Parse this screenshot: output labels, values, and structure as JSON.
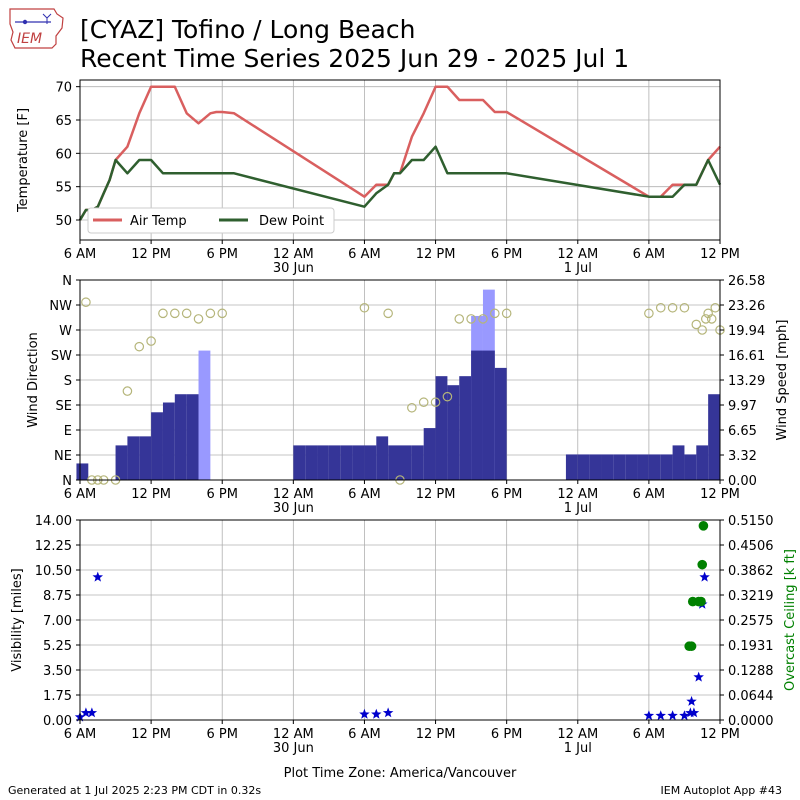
{
  "title": {
    "line1": "[CYAZ] Tofino / Long Beach",
    "line2": "Recent Time Series 2025 Jun 29 - 2025 Jul 1"
  },
  "logo": {
    "text": "IEM"
  },
  "footer": {
    "left": "Generated at 1 Jul 2025 2:23 PM CDT in 0.32s",
    "right": "IEM Autoplot App #43"
  },
  "colors": {
    "air_temp": "#d95f5f",
    "dew_point": "#2f5f2f",
    "wind_speed": "#353598",
    "wind_gust": "#9999ff",
    "wind_dir": "#b5b57a",
    "visibility": "#0000cc",
    "ceiling": "#008000",
    "grid": "#b0b0b0"
  },
  "chart_data": [
    {
      "type": "line",
      "name": "temperature-panel",
      "ylabel": "Temperature [F]",
      "ylim": [
        47,
        71
      ],
      "yticks": [
        50,
        55,
        60,
        65,
        70
      ],
      "xlim": [
        0,
        54
      ],
      "xticks": [
        0,
        6,
        12,
        18,
        24,
        30,
        36,
        42,
        48,
        54
      ],
      "xticklabels": [
        "6 AM",
        "12 PM",
        "6 PM",
        "12 AM",
        "6 AM",
        "12 PM",
        "6 PM",
        "12 AM",
        "6 AM",
        "12 PM"
      ],
      "date_labels": [
        {
          "x": 18,
          "label": "30 Jun"
        },
        {
          "x": 42,
          "label": "1 Jul"
        }
      ],
      "grid": true,
      "legend_placement": "lower-left",
      "series": [
        {
          "name": "Air Temp",
          "x": [
            0,
            0.5,
            1,
            1.5,
            2,
            2.5,
            3,
            4,
            5,
            6,
            7,
            8,
            9,
            10,
            11,
            11.5,
            12,
            13,
            24,
            25,
            26,
            26.5,
            27,
            28,
            29,
            30,
            31,
            32,
            33,
            34,
            35,
            36,
            48,
            49,
            50,
            51,
            52,
            53,
            54
          ],
          "y": [
            50,
            51.5,
            51.5,
            52,
            54,
            56,
            59,
            61,
            66,
            70,
            70,
            70,
            66,
            64.5,
            66,
            66.2,
            66.2,
            66,
            53.5,
            55.3,
            55.3,
            57,
            57,
            62.5,
            66,
            70,
            70,
            68,
            68,
            68,
            66.2,
            66.2,
            53.5,
            53.5,
            55.3,
            55.3,
            55.3,
            59,
            61
          ]
        },
        {
          "name": "Dew Point",
          "x": [
            0,
            0.5,
            1,
            1.5,
            2,
            2.5,
            3,
            4,
            5,
            6,
            7,
            8,
            9,
            10,
            11,
            11.5,
            12,
            13,
            24,
            25,
            26,
            26.5,
            27,
            28,
            29,
            30,
            31,
            32,
            33,
            34,
            35,
            36,
            48,
            49,
            50,
            51,
            52,
            53,
            54
          ],
          "y": [
            50,
            51.5,
            51.5,
            52,
            54,
            56,
            59,
            57,
            59,
            59,
            57,
            57,
            57,
            57,
            57,
            57,
            57,
            57,
            52,
            54,
            55.3,
            57,
            57,
            59,
            59,
            61,
            57,
            57,
            57,
            57,
            57,
            57,
            53.5,
            53.5,
            53.5,
            55.3,
            55.3,
            59,
            55.3
          ]
        }
      ]
    },
    {
      "type": "bar",
      "name": "wind-panel",
      "ylabel": "Wind Direction",
      "ylabel_right": "Wind Speed [mph]",
      "yticklabels_left": [
        "N",
        "NE",
        "E",
        "SE",
        "S",
        "SW",
        "W",
        "NW",
        "N"
      ],
      "yticks_left_deg": [
        0,
        45,
        90,
        135,
        180,
        225,
        270,
        315,
        360
      ],
      "yticklabels_right": [
        "0.00",
        "3.32",
        "6.65",
        "9.97",
        "13.29",
        "16.61",
        "19.94",
        "23.26",
        "26.58"
      ],
      "ylim_right": [
        0,
        26.58
      ],
      "xlim": [
        0,
        54
      ],
      "xticks": [
        0,
        6,
        12,
        18,
        24,
        30,
        36,
        42,
        48,
        54
      ],
      "xticklabels": [
        "6 AM",
        "12 PM",
        "6 PM",
        "12 AM",
        "6 AM",
        "12 PM",
        "6 PM",
        "12 AM",
        "6 AM",
        "12 PM"
      ],
      "date_labels": [
        {
          "x": 18,
          "label": "30 Jun"
        },
        {
          "x": 42,
          "label": "1 Jul"
        }
      ],
      "grid": true,
      "wind_speed": {
        "x": [
          0.2,
          1.2,
          2,
          2.5,
          3.5,
          4.5,
          5.5,
          6.5,
          7.5,
          8.5,
          9.5,
          10.5,
          11.5,
          12.5,
          17.5,
          18.5,
          19.5,
          20.5,
          21.5,
          22.5,
          23.5,
          24.5,
          25.5,
          26.5,
          27.5,
          28.5,
          29.5,
          30.5,
          31.5,
          32.5,
          33.5,
          34.5,
          35.5,
          41.5,
          42.5,
          43.5,
          44.5,
          45.5,
          46.5,
          47.5,
          48.5,
          49.5,
          50.5,
          51.5,
          52.5,
          53.5
        ],
        "w": [
          1,
          1,
          0.6,
          1,
          1,
          1,
          1,
          1,
          1,
          1,
          1,
          1,
          1,
          1,
          1,
          1,
          1,
          1,
          1,
          1,
          1,
          1,
          1,
          1,
          1,
          1,
          1,
          1,
          1,
          1,
          1,
          1,
          1,
          1,
          1,
          1,
          1,
          1,
          1,
          1,
          1,
          1,
          1,
          1,
          1,
          1
        ],
        "values": [
          2.2,
          0,
          0,
          0,
          4.6,
          5.8,
          5.8,
          9.0,
          10.3,
          11.4,
          11.4,
          0,
          0,
          0,
          0,
          4.6,
          4.6,
          4.6,
          4.6,
          4.6,
          4.6,
          4.6,
          5.8,
          4.6,
          4.6,
          4.6,
          6.9,
          13.8,
          12.6,
          13.8,
          17.2,
          17.2,
          14.9,
          3.4,
          3.4,
          3.4,
          3.4,
          3.4,
          3.4,
          3.4,
          3.4,
          3.4,
          4.6,
          3.4,
          4.6,
          11.4
        ]
      },
      "wind_gust": {
        "x": [
          10.5,
          33.5,
          34.5
        ],
        "values": [
          17.2,
          21.8,
          25.3
        ]
      },
      "wind_direction": {
        "x": [
          0.5,
          1,
          1.5,
          2,
          3,
          4,
          5,
          6,
          7,
          8,
          9,
          10,
          11,
          12,
          24,
          26,
          27,
          28,
          29,
          30,
          31,
          32,
          33,
          34,
          35,
          36,
          48,
          49,
          50,
          51,
          52,
          52.5,
          52.8,
          53,
          53.3,
          53.6,
          54
        ],
        "values": [
          320,
          0,
          0,
          0,
          0,
          160,
          240,
          250,
          300,
          300,
          300,
          290,
          300,
          300,
          310,
          300,
          0,
          130,
          140,
          140,
          150,
          290,
          290,
          290,
          300,
          300,
          300,
          310,
          310,
          310,
          280,
          270,
          290,
          300,
          290,
          310,
          270
        ]
      }
    },
    {
      "type": "scatter",
      "name": "visibility-panel",
      "ylabel": "Visibility [miles]",
      "ylabel_right": "Overcast Ceiling [k ft]",
      "ylim": [
        0,
        14
      ],
      "yticklabels_left": [
        "0.00",
        "1.75",
        "3.50",
        "5.25",
        "7.00",
        "8.75",
        "10.50",
        "12.25",
        "14.00"
      ],
      "ylim_right": [
        0,
        0.515
      ],
      "yticklabels_right": [
        "0.0000",
        "0.0644",
        "0.1288",
        "0.1931",
        "0.2575",
        "0.3219",
        "0.3862",
        "0.4506",
        "0.5150"
      ],
      "xlim": [
        0,
        54
      ],
      "xticks": [
        0,
        6,
        12,
        18,
        24,
        30,
        36,
        42,
        48,
        54
      ],
      "xticklabels": [
        "6 AM",
        "12 PM",
        "6 PM",
        "12 AM",
        "6 AM",
        "12 PM",
        "6 PM",
        "12 AM",
        "6 AM",
        "12 PM"
      ],
      "date_labels": [
        {
          "x": 18,
          "label": "30 Jun"
        },
        {
          "x": 42,
          "label": "1 Jul"
        }
      ],
      "xlabel": "Plot Time Zone: America/Vancouver",
      "grid": true,
      "visibility": {
        "x": [
          0,
          0.5,
          1,
          1.5,
          24,
          25,
          26,
          48,
          49,
          50,
          51,
          51.5,
          51.6,
          51.8,
          52.2,
          52.5,
          52.7
        ],
        "values": [
          0.2,
          0.5,
          0.5,
          10,
          0.4,
          0.4,
          0.5,
          0.3,
          0.3,
          0.3,
          0.3,
          0.5,
          1.3,
          0.5,
          3.0,
          8.1,
          10.0
        ]
      },
      "ceiling": {
        "x": [
          51.4,
          51.6,
          51.7,
          52.2,
          52.4,
          52.5,
          52.6
        ],
        "values": [
          0.19,
          0.19,
          0.305,
          0.305,
          0.305,
          0.4,
          0.5
        ]
      }
    }
  ]
}
